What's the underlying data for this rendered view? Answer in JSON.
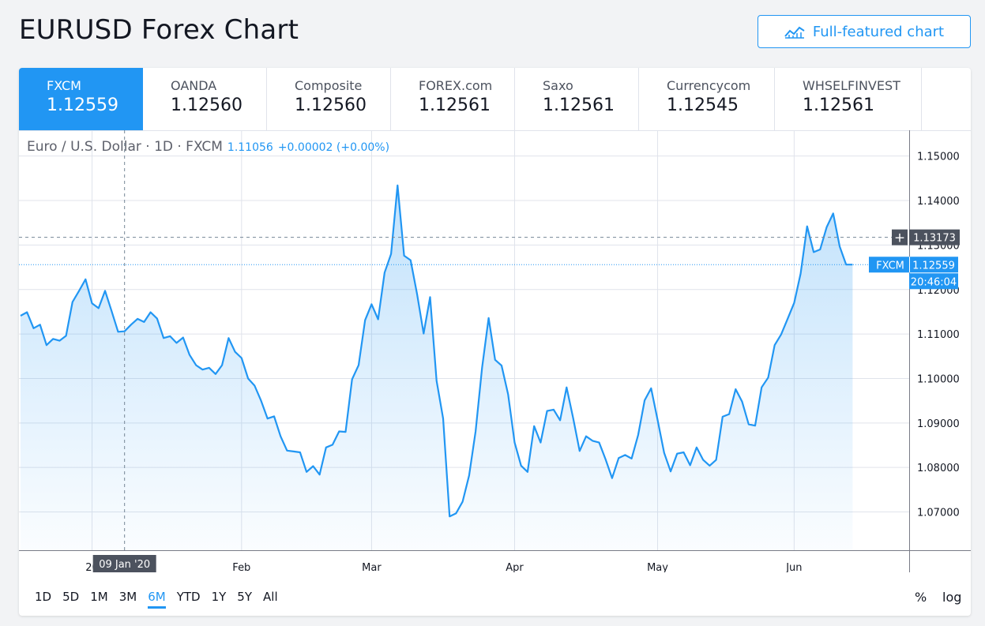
{
  "page": {
    "title": "EURUSD Forex Chart",
    "full_chart_button": "Full-featured chart",
    "full_chart_icon": "chart-line-icon"
  },
  "brokers": [
    {
      "name": "FXCM",
      "price": "1.12559",
      "active": true
    },
    {
      "name": "OANDA",
      "price": "1.12560",
      "active": false
    },
    {
      "name": "Composite",
      "price": "1.12560",
      "active": false
    },
    {
      "name": "FOREX.com",
      "price": "1.12561",
      "active": false
    },
    {
      "name": "Saxo",
      "price": "1.12561",
      "active": false
    },
    {
      "name": "Currencycom",
      "price": "1.12545",
      "active": false
    },
    {
      "name": "WHSELFINVEST",
      "price": "1.12561",
      "active": false
    }
  ],
  "legend": {
    "symbol": "Euro / U.S. Dollar · 1D · FXCM",
    "value": "1.11056",
    "change": "+0.00002 (+0.00%)"
  },
  "ranges": [
    "1D",
    "5D",
    "1M",
    "3M",
    "6M",
    "YTD",
    "1Y",
    "5Y",
    "All"
  ],
  "active_range": "6M",
  "scale_buttons": {
    "percent": "%",
    "log": "log"
  },
  "colors": {
    "accent": "#2196f3",
    "crosshair_label_bg": "#4c525e",
    "grid": "#e0e3eb"
  },
  "chart_data": {
    "type": "area",
    "series": [
      {
        "name": "FXCM",
        "values": [
          1.1141,
          1.1149,
          1.1113,
          1.1121,
          1.1075,
          1.1089,
          1.1085,
          1.1096,
          1.1172,
          1.1197,
          1.1223,
          1.1169,
          1.1158,
          1.1197,
          1.1152,
          1.1105,
          1.1106,
          1.1121,
          1.1134,
          1.1127,
          1.1149,
          1.1135,
          1.1091,
          1.1095,
          1.108,
          1.1092,
          1.1053,
          1.103,
          1.102,
          1.1024,
          1.101,
          1.103,
          1.1091,
          1.106,
          1.1046,
          1.1,
          1.0984,
          1.095,
          1.091,
          1.0915,
          1.087,
          1.0838,
          1.0836,
          1.0834,
          1.079,
          1.0803,
          1.0784,
          1.0845,
          1.0851,
          1.0881,
          1.088,
          1.0998,
          1.103,
          1.1131,
          1.1167,
          1.1133,
          1.1238,
          1.128,
          1.1434,
          1.1276,
          1.1266,
          1.119,
          1.1101,
          1.1183,
          1.0995,
          1.091,
          1.069,
          1.0697,
          1.0723,
          1.0782,
          1.0881,
          1.1024,
          1.1136,
          1.1042,
          1.1029,
          1.0964,
          1.0856,
          1.0804,
          1.079,
          1.0893,
          1.0856,
          1.0927,
          1.093,
          1.0906,
          1.098,
          1.0911,
          1.0837,
          1.087,
          1.086,
          1.0856,
          1.0818,
          1.0776,
          1.0821,
          1.0828,
          1.082,
          1.0873,
          1.0951,
          1.0978,
          1.0907,
          1.0833,
          1.0791,
          1.0831,
          1.0834,
          1.0805,
          1.0845,
          1.0817,
          1.0804,
          1.0817,
          1.0914,
          1.092,
          1.0976,
          1.0948,
          1.0897,
          1.0894,
          1.098,
          1.1002,
          1.1075,
          1.1099,
          1.1134,
          1.117,
          1.1236,
          1.1342,
          1.1284,
          1.129,
          1.134,
          1.1371,
          1.1297,
          1.1256,
          1.1256
        ]
      }
    ],
    "last_value": 1.12559,
    "last_label": "FXCM",
    "last_price_label": "1.12559",
    "last_time_label": "20:46:04",
    "crosshair": {
      "price_label": "1.13173",
      "price": 1.13173,
      "date_label": "09 Jan '20",
      "bar_index": 16
    },
    "y_ticks": [
      "1.15000",
      "1.14000",
      "1.13000",
      "1.12000",
      "1.11000",
      "1.10000",
      "1.09000",
      "1.08000",
      "1.07000"
    ],
    "y_tick_values": [
      1.15,
      1.14,
      1.13,
      1.12,
      1.11,
      1.1,
      1.09,
      1.08,
      1.07
    ],
    "x_ticks": [
      {
        "label": "20",
        "bar_index": 11
      },
      {
        "label": "Feb",
        "bar_index": 34
      },
      {
        "label": "Mar",
        "bar_index": 54
      },
      {
        "label": "Apr",
        "bar_index": 76
      },
      {
        "label": "May",
        "bar_index": 98
      },
      {
        "label": "Jun",
        "bar_index": 119
      }
    ],
    "ylim": [
      1.0614,
      1.1558
    ],
    "grid": true
  }
}
